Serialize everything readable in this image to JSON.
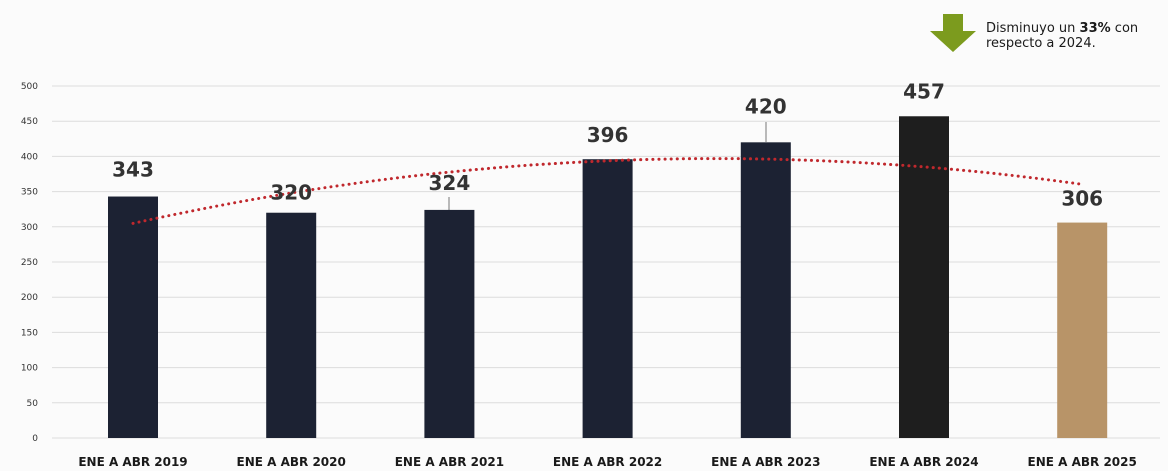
{
  "chart_data": {
    "type": "bar",
    "categories": [
      "ENE A ABR 2019",
      "ENE A ABR 2020",
      "ENE A ABR 2021",
      "ENE A ABR 2022",
      "ENE A ABR 2023",
      "ENE A ABR 2024",
      "ENE A ABR 2025"
    ],
    "values": [
      343,
      320,
      324,
      396,
      420,
      457,
      306
    ],
    "data_labels": [
      "343",
      "320",
      "324",
      "396",
      "420",
      "457",
      "306"
    ],
    "ylim": [
      0,
      500
    ],
    "yticks": [
      0,
      50,
      100,
      150,
      200,
      250,
      300,
      350,
      400,
      450,
      500
    ],
    "grid": true,
    "trendline": {
      "type": "polynomial",
      "style": "dotted",
      "color": "#c0282d"
    },
    "bar_colors": [
      "#1c2233",
      "#1c2233",
      "#1c2233",
      "#1c2233",
      "#1c2233",
      "#1e1e1e",
      "#b89468"
    ]
  },
  "callout": {
    "text_before": "Disminuyo un ",
    "highlight": "33%",
    "text_after": " con",
    "line2": "respecto a 2024.",
    "arrow_color": "#7c9b1e",
    "icon": "down-arrow-icon"
  }
}
